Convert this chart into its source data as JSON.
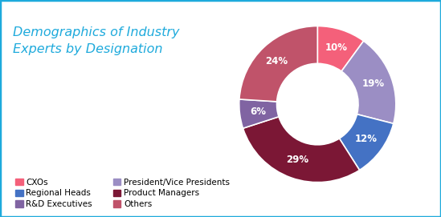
{
  "title": "Demographics of Industry\nExperts by Designation",
  "title_color": "#1EAADC",
  "segments": [
    {
      "label": "CXOs",
      "value": 10,
      "color": "#F4607A",
      "pct": "10%"
    },
    {
      "label": "President/Vice Presidents",
      "value": 19,
      "color": "#9B8EC4",
      "pct": "19%"
    },
    {
      "label": "Regional Heads",
      "value": 12,
      "color": "#4472C4",
      "pct": "12%"
    },
    {
      "label": "Product Managers",
      "value": 29,
      "color": "#7B1735",
      "pct": "29%"
    },
    {
      "label": "R&D Executives",
      "value": 6,
      "color": "#8064A2",
      "pct": "6%"
    },
    {
      "label": "Others",
      "value": 24,
      "color": "#C0536A",
      "pct": "24%"
    }
  ],
  "start_angle": 90,
  "background_color": "#FFFFFF",
  "border_color": "#1EAADC",
  "title_fontsize": 11.5,
  "label_fontsize": 8.5,
  "legend_fontsize": 7.5
}
